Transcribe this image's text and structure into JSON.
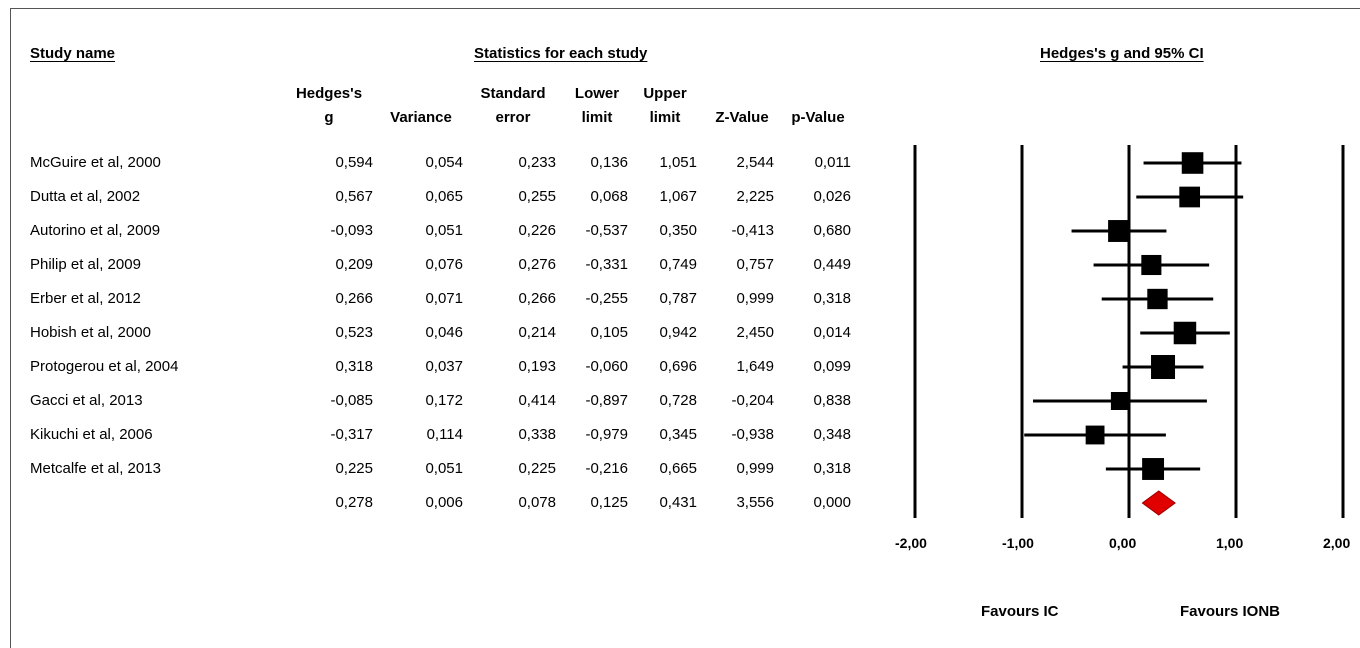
{
  "headers": {
    "study_name": "Study name",
    "statistics": "Statistics for each study",
    "ci_title": "Hedges's g and 95% CI"
  },
  "columns": [
    "Hedges's\ng",
    "Variance",
    "Standard\nerror",
    "Lower\nlimit",
    "Upper\nlimit",
    "Z-Value",
    "p-Value"
  ],
  "rows": [
    {
      "study": "McGuire et al, 2000",
      "cells": [
        "0,594",
        "0,054",
        "0,233",
        "0,136",
        "1,051",
        "2,544",
        "0,011"
      ]
    },
    {
      "study": "Dutta et al, 2002",
      "cells": [
        "0,567",
        "0,065",
        "0,255",
        "0,068",
        "1,067",
        "2,225",
        "0,026"
      ]
    },
    {
      "study": "Autorino et al, 2009",
      "cells": [
        "-0,093",
        "0,051",
        "0,226",
        "-0,537",
        "0,350",
        "-0,413",
        "0,680"
      ]
    },
    {
      "study": "Philip et al, 2009",
      "cells": [
        "0,209",
        "0,076",
        "0,276",
        "-0,331",
        "0,749",
        "0,757",
        "0,449"
      ]
    },
    {
      "study": "Erber et al, 2012",
      "cells": [
        "0,266",
        "0,071",
        "0,266",
        "-0,255",
        "0,787",
        "0,999",
        "0,318"
      ]
    },
    {
      "study": "Hobish et al, 2000",
      "cells": [
        "0,523",
        "0,046",
        "0,214",
        "0,105",
        "0,942",
        "2,450",
        "0,014"
      ]
    },
    {
      "study": "Protogerou et al, 2004",
      "cells": [
        "0,318",
        "0,037",
        "0,193",
        "-0,060",
        "0,696",
        "1,649",
        "0,099"
      ]
    },
    {
      "study": "Gacci et al, 2013",
      "cells": [
        "-0,085",
        "0,172",
        "0,414",
        "-0,897",
        "0,728",
        "-0,204",
        "0,838"
      ]
    },
    {
      "study": "Kikuchi et al, 2006",
      "cells": [
        "-0,317",
        "0,114",
        "0,338",
        "-0,979",
        "0,345",
        "-0,938",
        "0,348"
      ]
    },
    {
      "study": "Metcalfe et al, 2013",
      "cells": [
        "0,225",
        "0,051",
        "0,225",
        "-0,216",
        "0,665",
        "0,999",
        "0,318"
      ]
    }
  ],
  "summary": {
    "study": "",
    "cells": [
      "0,278",
      "0,006",
      "0,078",
      "0,125",
      "0,431",
      "3,556",
      "0,000"
    ]
  },
  "axis": {
    "ticks": [
      "-2,00",
      "-1,00",
      "0,00",
      "1,00",
      "2,00"
    ],
    "favours_left": "Favours IC",
    "favours_right": "Favours IONB"
  },
  "chart_data": {
    "type": "forest",
    "title": "Hedges's g and 95% CI",
    "xlim": [
      -2,
      2
    ],
    "xticks": [
      -2,
      -1,
      0,
      1,
      2
    ],
    "studies": [
      {
        "name": "McGuire et al, 2000",
        "g": 0.594,
        "lower": 0.136,
        "upper": 1.051,
        "weight": 0.054
      },
      {
        "name": "Dutta et al, 2002",
        "g": 0.567,
        "lower": 0.068,
        "upper": 1.067,
        "weight": 0.065
      },
      {
        "name": "Autorino et al, 2009",
        "g": -0.093,
        "lower": -0.537,
        "upper": 0.35,
        "weight": 0.051
      },
      {
        "name": "Philip et al, 2009",
        "g": 0.209,
        "lower": -0.331,
        "upper": 0.749,
        "weight": 0.076
      },
      {
        "name": "Erber et al, 2012",
        "g": 0.266,
        "lower": -0.255,
        "upper": 0.787,
        "weight": 0.071
      },
      {
        "name": "Hobish et al, 2000",
        "g": 0.523,
        "lower": 0.105,
        "upper": 0.942,
        "weight": 0.046
      },
      {
        "name": "Protogerou et al, 2004",
        "g": 0.318,
        "lower": -0.06,
        "upper": 0.696,
        "weight": 0.037
      },
      {
        "name": "Gacci et al, 2013",
        "g": -0.085,
        "lower": -0.897,
        "upper": 0.728,
        "weight": 0.172
      },
      {
        "name": "Kikuchi et al, 2006",
        "g": -0.317,
        "lower": -0.979,
        "upper": 0.345,
        "weight": 0.114
      },
      {
        "name": "Metcalfe et al, 2013",
        "g": 0.225,
        "lower": -0.216,
        "upper": 0.665,
        "weight": 0.051
      }
    ],
    "summary": {
      "g": 0.278,
      "lower": 0.125,
      "upper": 0.431
    },
    "summary_color": "#e00000",
    "marker_color": "#000000"
  }
}
